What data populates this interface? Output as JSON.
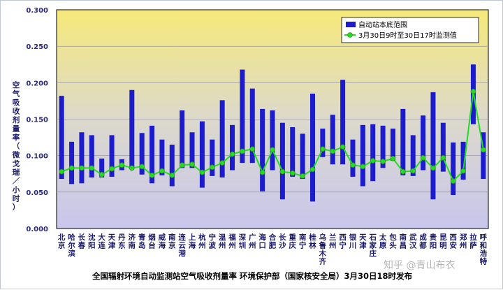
{
  "chart_data": {
    "type": "bar",
    "title": "全国辐射环境自动监测站空气吸收剂量率  环境保护部（国家核安全局）3月30日18时发布",
    "ylabel": "空气吸收剂量率（微戈瑞／小时）",
    "xlabel": "",
    "ylim": [
      0,
      0.3
    ],
    "yticks": [
      "0.000",
      "0.050",
      "0.100",
      "0.150",
      "0.200",
      "0.250",
      "0.300"
    ],
    "legend": {
      "position": "top-right",
      "range_label": "自动站本底范围",
      "line_label": "3月30日9时至30日17时监测值"
    },
    "colors": {
      "bar": "#1c1ccc",
      "line": "#22dd22",
      "marker_edge": "#3a8a20"
    },
    "background_gradient": [
      "#f6e97a",
      "#dcd9cc",
      "#c8c6ec"
    ],
    "categories": [
      "北京",
      "哈尔滨",
      "长春",
      "沈阳",
      "大连",
      "天津",
      "丹东",
      "济南",
      "青岛",
      "烟台",
      "威海",
      "南京",
      "连云港",
      "上海",
      "杭州",
      "宁波",
      "温州",
      "福州",
      "深圳",
      "广州",
      "海口",
      "合肥",
      "长沙",
      "重庆",
      "南宁",
      "桂林",
      "乌鲁木齐",
      "兰州",
      "西宁",
      "银川",
      "天津",
      "石家庄",
      "太原",
      "包头",
      "南昌",
      "武汉",
      "成都",
      "贵阳",
      "昆明",
      "西安",
      "郑州",
      "拉萨",
      "呼和浩特"
    ],
    "series": [
      {
        "name": "自动站本底范围",
        "type": "range_bar",
        "low": [
          0.068,
          0.061,
          0.062,
          0.07,
          0.07,
          0.071,
          0.08,
          0.082,
          0.074,
          0.062,
          0.073,
          0.058,
          0.083,
          0.083,
          0.056,
          0.072,
          0.07,
          0.08,
          0.09,
          0.09,
          0.051,
          0.08,
          0.04,
          0.071,
          0.068,
          0.037,
          0.098,
          0.088,
          0.088,
          0.071,
          0.058,
          0.065,
          0.083,
          0.093,
          0.073,
          0.072,
          0.08,
          0.04,
          0.078,
          0.046,
          0.067,
          0.143,
          0.068
        ],
        "high": [
          0.182,
          0.119,
          0.132,
          0.128,
          0.096,
          0.128,
          0.095,
          0.19,
          0.131,
          0.141,
          0.122,
          0.115,
          0.162,
          0.132,
          0.147,
          0.122,
          0.176,
          0.142,
          0.218,
          0.192,
          0.164,
          0.162,
          0.145,
          0.139,
          0.13,
          0.185,
          0.137,
          0.156,
          0.204,
          0.122,
          0.142,
          0.143,
          0.141,
          0.137,
          0.164,
          0.128,
          0.155,
          0.187,
          0.145,
          0.118,
          0.119,
          0.225,
          0.132
        ]
      },
      {
        "name": "3月30日9时至30日17时监测值",
        "type": "line",
        "values": [
          0.078,
          0.083,
          0.083,
          0.083,
          0.074,
          0.082,
          0.087,
          0.083,
          0.085,
          0.073,
          0.079,
          0.073,
          0.087,
          0.088,
          0.077,
          0.084,
          0.09,
          0.102,
          0.106,
          0.109,
          0.077,
          0.108,
          0.078,
          0.076,
          0.072,
          0.081,
          0.109,
          0.106,
          0.112,
          0.087,
          0.085,
          0.093,
          0.092,
          0.096,
          0.078,
          0.079,
          0.097,
          0.083,
          0.097,
          0.065,
          0.079,
          0.188,
          0.108
        ]
      }
    ]
  },
  "watermark": "知乎 @青山布衣"
}
